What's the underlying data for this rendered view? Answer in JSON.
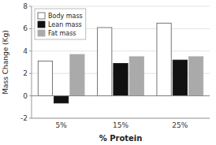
{
  "chart_data": {
    "type": "bar",
    "categories": [
      "5%",
      "15%",
      "25%"
    ],
    "series": [
      {
        "name": "Body mass",
        "color": "#ffffff",
        "values": [
          3.1,
          6.1,
          6.5
        ]
      },
      {
        "name": "Lean mass",
        "color": "#111111",
        "values": [
          -0.65,
          2.9,
          3.2
        ]
      },
      {
        "name": "Fat mass",
        "color": "#aaaaaa",
        "values": [
          3.7,
          3.5,
          3.5
        ]
      }
    ],
    "xlabel": "% Protein",
    "ylabel": "Mass Change (Kg)",
    "ylim": [
      -2,
      8
    ],
    "yticks": [
      -2,
      0,
      2,
      4,
      6,
      8
    ],
    "grid": true,
    "legend": "upper left"
  }
}
